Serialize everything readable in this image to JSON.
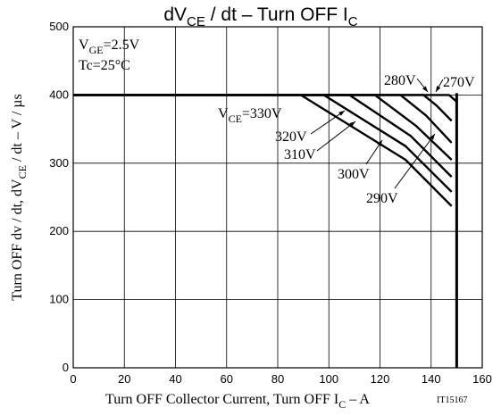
{
  "chart_data": {
    "type": "line",
    "title": {
      "main": "dV",
      "main_sub": "CE",
      "after": " / dt  –  Turn OFF I",
      "after_sub": "C"
    },
    "xlabel": {
      "main": "Turn OFF Collector Current, Turn OFF I",
      "sub": "C",
      "after": " – A"
    },
    "ylabel": {
      "main": "Turn OFF dv / dt, dV",
      "sub": "CE",
      "after": " / dt  –  V / µs"
    },
    "code": "IT15167",
    "xlim": [
      0,
      160
    ],
    "ylim": [
      0,
      500
    ],
    "x_ticks": [
      0,
      20,
      40,
      60,
      80,
      100,
      120,
      140,
      160
    ],
    "y_ticks": [
      0,
      100,
      200,
      300,
      400,
      500
    ],
    "grid": true,
    "conditions": {
      "vge": {
        "main": "V",
        "sub": "GE",
        "after": "=2.5V"
      },
      "tc": "Tc=25°C"
    },
    "series": [
      {
        "name": "330V",
        "x": [
          0,
          89,
          130,
          148
        ],
        "y": [
          400,
          400,
          305,
          237
        ]
      },
      {
        "name": "320V",
        "x": [
          0,
          98,
          130,
          148
        ],
        "y": [
          400,
          400,
          325,
          258
        ]
      },
      {
        "name": "310V",
        "x": [
          0,
          108,
          132,
          148
        ],
        "y": [
          400,
          400,
          340,
          280
        ]
      },
      {
        "name": "300V",
        "x": [
          0,
          118,
          134,
          148
        ],
        "y": [
          400,
          400,
          355,
          305
        ]
      },
      {
        "name": "290V",
        "x": [
          0,
          128,
          138,
          148
        ],
        "y": [
          400,
          400,
          370,
          330
        ]
      },
      {
        "name": "280V",
        "x": [
          0,
          137,
          142,
          148
        ],
        "y": [
          400,
          400,
          385,
          362
        ]
      },
      {
        "name": "270V",
        "x": [
          0,
          147,
          150,
          150
        ],
        "y": [
          400,
          400,
          390,
          0
        ]
      }
    ],
    "boundary_x": 150,
    "labels": [
      {
        "series": "330V",
        "main": "V",
        "sub": "CE",
        "after": "=330V"
      },
      {
        "series": "320V",
        "text": "320V"
      },
      {
        "series": "310V",
        "text": "310V"
      },
      {
        "series": "300V",
        "text": "300V"
      },
      {
        "series": "290V",
        "text": "290V"
      },
      {
        "series": "280V",
        "text": "280V"
      },
      {
        "series": "270V",
        "text": "270V"
      }
    ]
  }
}
